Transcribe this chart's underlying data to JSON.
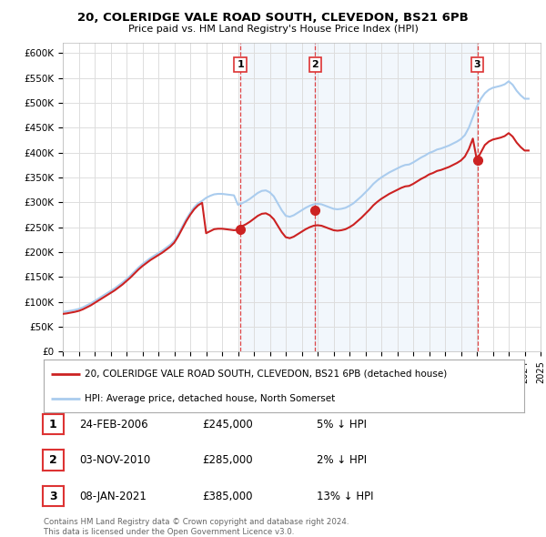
{
  "title_line1": "20, COLERIDGE VALE ROAD SOUTH, CLEVEDON, BS21 6PB",
  "title_line2": "Price paid vs. HM Land Registry's House Price Index (HPI)",
  "background_color": "#ffffff",
  "plot_bg_color": "#ffffff",
  "grid_color": "#dddddd",
  "hpi_color": "#aaccee",
  "hpi_fill_color": "#ddeeff",
  "price_color": "#cc2222",
  "sale_marker_color": "#cc2222",
  "dashed_line_color": "#dd3333",
  "ylim": [
    0,
    620000
  ],
  "yticks": [
    0,
    50000,
    100000,
    150000,
    200000,
    250000,
    300000,
    350000,
    400000,
    450000,
    500000,
    550000,
    600000
  ],
  "ytick_labels": [
    "£0",
    "£50K",
    "£100K",
    "£150K",
    "£200K",
    "£250K",
    "£300K",
    "£350K",
    "£400K",
    "£450K",
    "£500K",
    "£550K",
    "£600K"
  ],
  "sale_points": [
    {
      "label": "1",
      "year": 2006.15,
      "price": 245000
    },
    {
      "label": "2",
      "year": 2010.84,
      "price": 285000
    },
    {
      "label": "3",
      "year": 2021.03,
      "price": 385000
    }
  ],
  "legend_price_label": "20, COLERIDGE VALE ROAD SOUTH, CLEVEDON, BS21 6PB (detached house)",
  "legend_hpi_label": "HPI: Average price, detached house, North Somerset",
  "table_entries": [
    {
      "num": "1",
      "date": "24-FEB-2006",
      "price": "£245,000",
      "pct": "5% ↓ HPI"
    },
    {
      "num": "2",
      "date": "03-NOV-2010",
      "price": "£285,000",
      "pct": "2% ↓ HPI"
    },
    {
      "num": "3",
      "date": "08-JAN-2021",
      "price": "£385,000",
      "pct": "13% ↓ HPI"
    }
  ],
  "footnote": "Contains HM Land Registry data © Crown copyright and database right 2024.\nThis data is licensed under the Open Government Licence v3.0.",
  "hpi_years": [
    1995.0,
    1995.25,
    1995.5,
    1995.75,
    1996.0,
    1996.25,
    1996.5,
    1996.75,
    1997.0,
    1997.25,
    1997.5,
    1997.75,
    1998.0,
    1998.25,
    1998.5,
    1998.75,
    1999.0,
    1999.25,
    1999.5,
    1999.75,
    2000.0,
    2000.25,
    2000.5,
    2000.75,
    2001.0,
    2001.25,
    2001.5,
    2001.75,
    2002.0,
    2002.25,
    2002.5,
    2002.75,
    2003.0,
    2003.25,
    2003.5,
    2003.75,
    2004.0,
    2004.25,
    2004.5,
    2004.75,
    2005.0,
    2005.25,
    2005.5,
    2005.75,
    2006.0,
    2006.25,
    2006.5,
    2006.75,
    2007.0,
    2007.25,
    2007.5,
    2007.75,
    2008.0,
    2008.25,
    2008.5,
    2008.75,
    2009.0,
    2009.25,
    2009.5,
    2009.75,
    2010.0,
    2010.25,
    2010.5,
    2010.75,
    2011.0,
    2011.25,
    2011.5,
    2011.75,
    2012.0,
    2012.25,
    2012.5,
    2012.75,
    2013.0,
    2013.25,
    2013.5,
    2013.75,
    2014.0,
    2014.25,
    2014.5,
    2014.75,
    2015.0,
    2015.25,
    2015.5,
    2015.75,
    2016.0,
    2016.25,
    2016.5,
    2016.75,
    2017.0,
    2017.25,
    2017.5,
    2017.75,
    2018.0,
    2018.25,
    2018.5,
    2018.75,
    2019.0,
    2019.25,
    2019.5,
    2019.75,
    2020.0,
    2020.25,
    2020.5,
    2020.75,
    2021.0,
    2021.25,
    2021.5,
    2021.75,
    2022.0,
    2022.25,
    2022.5,
    2022.75,
    2023.0,
    2023.25,
    2023.5,
    2023.75,
    2024.0,
    2024.25
  ],
  "hpi_values": [
    80000,
    81000,
    82500,
    84000,
    86000,
    89000,
    93000,
    97000,
    102000,
    107000,
    112000,
    117000,
    122000,
    127000,
    133000,
    139000,
    146000,
    153000,
    161000,
    169000,
    176000,
    182000,
    188000,
    193000,
    198000,
    203000,
    209000,
    215000,
    223000,
    236000,
    251000,
    266000,
    279000,
    290000,
    298000,
    303000,
    309000,
    313000,
    316000,
    317000,
    317000,
    316000,
    315000,
    314000,
    295000,
    298000,
    302000,
    307000,
    313000,
    319000,
    323000,
    324000,
    320000,
    312000,
    298000,
    284000,
    273000,
    271000,
    274000,
    279000,
    284000,
    289000,
    293000,
    296000,
    297000,
    296000,
    293000,
    290000,
    287000,
    286000,
    287000,
    289000,
    293000,
    298000,
    305000,
    312000,
    320000,
    328000,
    337000,
    344000,
    350000,
    355000,
    360000,
    364000,
    368000,
    372000,
    375000,
    376000,
    380000,
    385000,
    390000,
    394000,
    399000,
    402000,
    406000,
    408000,
    411000,
    414000,
    418000,
    422000,
    427000,
    435000,
    450000,
    471000,
    492000,
    508000,
    519000,
    526000,
    530000,
    532000,
    534000,
    537000,
    543000,
    536000,
    524000,
    515000,
    508000,
    508000
  ],
  "price_years": [
    1995.0,
    1995.25,
    1995.5,
    1995.75,
    1996.0,
    1996.25,
    1996.5,
    1996.75,
    1997.0,
    1997.25,
    1997.5,
    1997.75,
    1998.0,
    1998.25,
    1998.5,
    1998.75,
    1999.0,
    1999.25,
    1999.5,
    1999.75,
    2000.0,
    2000.25,
    2000.5,
    2000.75,
    2001.0,
    2001.25,
    2001.5,
    2001.75,
    2002.0,
    2002.25,
    2002.5,
    2002.75,
    2003.0,
    2003.25,
    2003.5,
    2003.75,
    2004.0,
    2004.25,
    2004.5,
    2004.75,
    2005.0,
    2005.25,
    2005.5,
    2005.75,
    2006.0,
    2006.25,
    2006.5,
    2006.75,
    2007.0,
    2007.25,
    2007.5,
    2007.75,
    2008.0,
    2008.25,
    2008.5,
    2008.75,
    2009.0,
    2009.25,
    2009.5,
    2009.75,
    2010.0,
    2010.25,
    2010.5,
    2010.75,
    2011.0,
    2011.25,
    2011.5,
    2011.75,
    2012.0,
    2012.25,
    2012.5,
    2012.75,
    2013.0,
    2013.25,
    2013.5,
    2013.75,
    2014.0,
    2014.25,
    2014.5,
    2014.75,
    2015.0,
    2015.25,
    2015.5,
    2015.75,
    2016.0,
    2016.25,
    2016.5,
    2016.75,
    2017.0,
    2017.25,
    2017.5,
    2017.75,
    2018.0,
    2018.25,
    2018.5,
    2018.75,
    2019.0,
    2019.25,
    2019.5,
    2019.75,
    2020.0,
    2020.25,
    2020.5,
    2020.75,
    2021.0,
    2021.25,
    2021.5,
    2021.75,
    2022.0,
    2022.25,
    2022.5,
    2022.75,
    2023.0,
    2023.25,
    2023.5,
    2023.75,
    2024.0,
    2024.25
  ],
  "price_values": [
    76000,
    77000,
    78500,
    80000,
    82000,
    85000,
    89000,
    93000,
    98000,
    103000,
    108000,
    113000,
    118000,
    123000,
    129000,
    135000,
    142000,
    149000,
    157000,
    165000,
    172000,
    178000,
    184000,
    189000,
    194000,
    199000,
    205000,
    211000,
    219000,
    232000,
    247000,
    262000,
    275000,
    286000,
    294000,
    299000,
    238000,
    242000,
    246000,
    247000,
    247000,
    246000,
    245000,
    244000,
    245000,
    252000,
    256000,
    261000,
    267000,
    273000,
    277000,
    278000,
    274000,
    266000,
    253000,
    240000,
    230000,
    228000,
    231000,
    236000,
    241000,
    246000,
    250000,
    253000,
    254000,
    253000,
    250000,
    247000,
    244000,
    243000,
    244000,
    246000,
    250000,
    255000,
    262000,
    269000,
    277000,
    285000,
    294000,
    301000,
    307000,
    312000,
    317000,
    321000,
    325000,
    329000,
    332000,
    333000,
    337000,
    342000,
    347000,
    351000,
    356000,
    359000,
    363000,
    365000,
    368000,
    371000,
    375000,
    379000,
    384000,
    392000,
    407000,
    428000,
    385000,
    400000,
    415000,
    422000,
    426000,
    428000,
    430000,
    433000,
    439000,
    432000,
    420000,
    411000,
    404000,
    404000
  ],
  "xlim": [
    1995,
    2025
  ]
}
